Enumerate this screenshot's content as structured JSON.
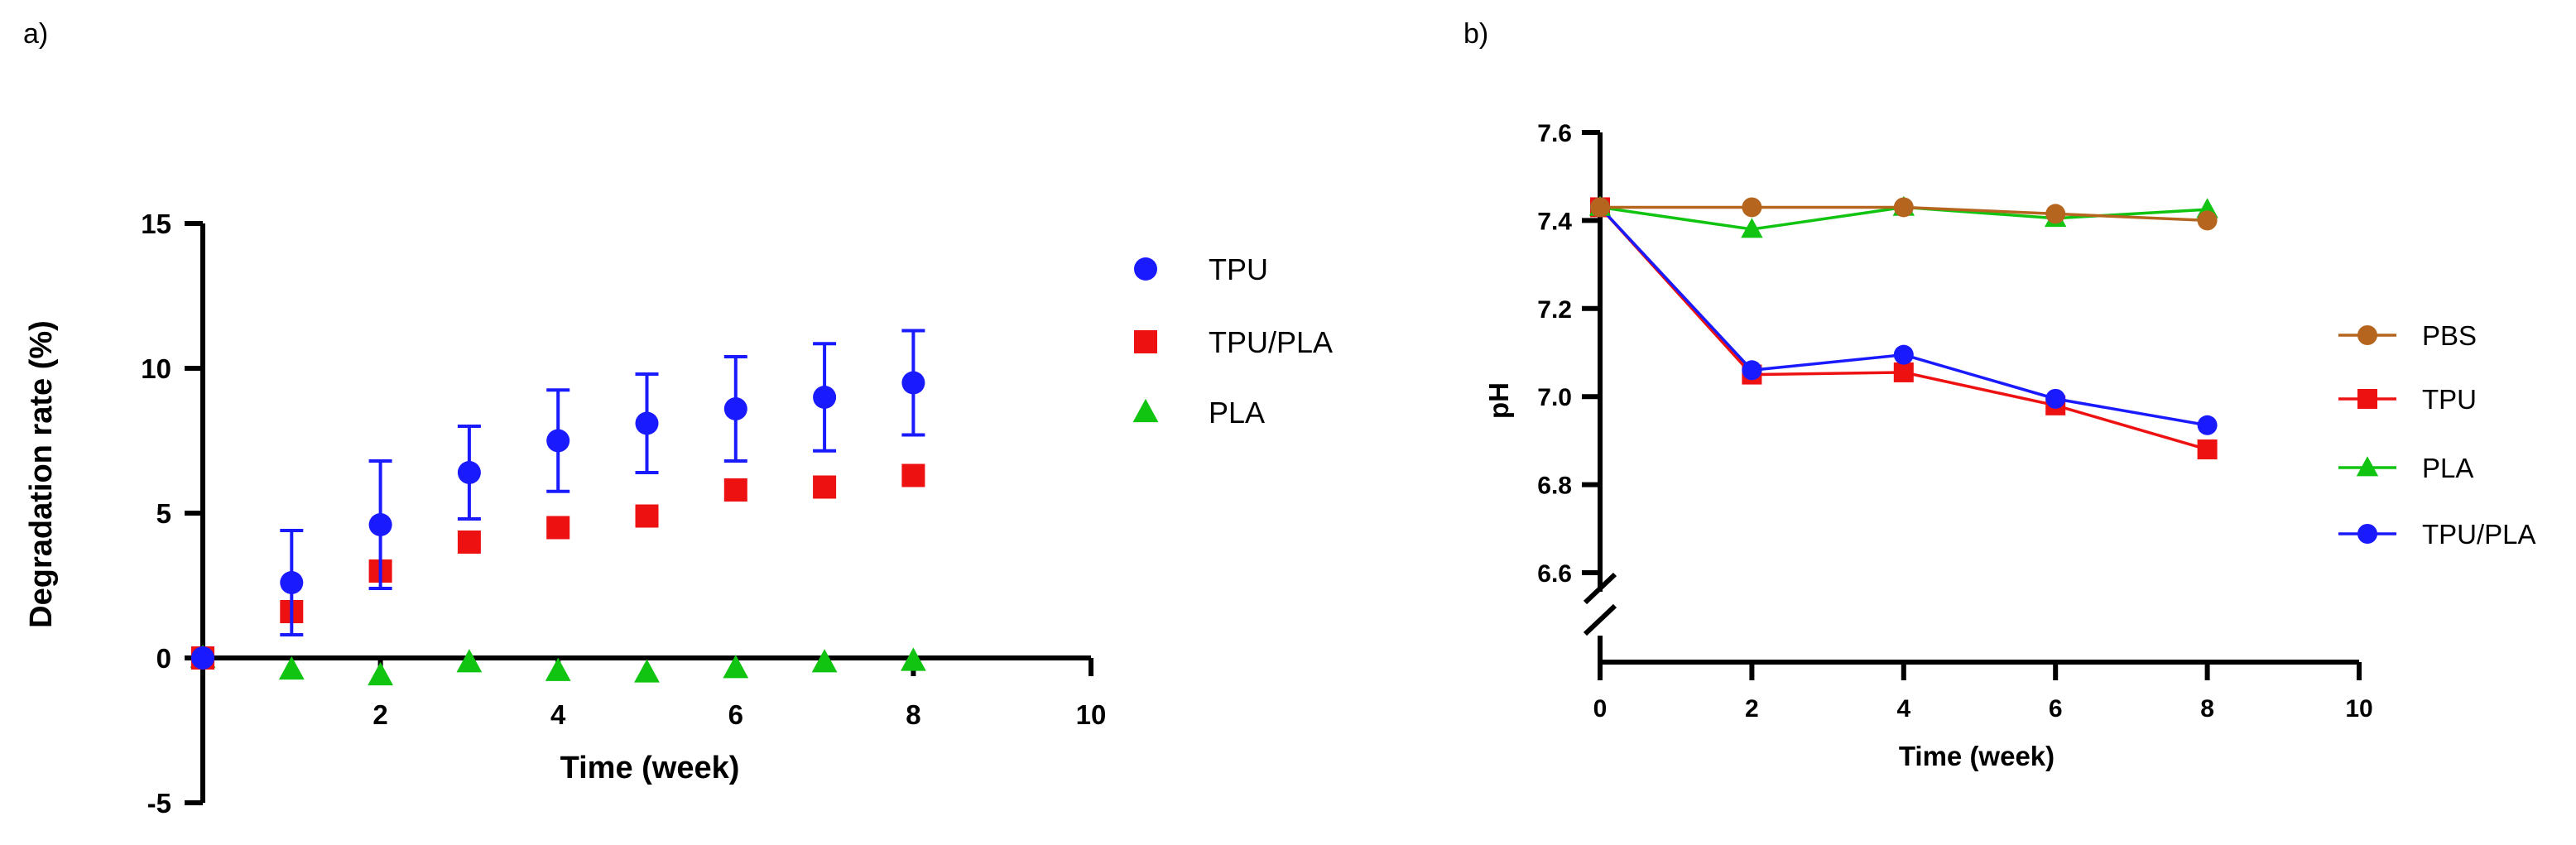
{
  "chart_data": [
    {
      "panel": "a)",
      "type": "scatter",
      "title": "",
      "xlabel": "Time (week)",
      "ylabel": "Degradation rate (%)",
      "xlim": [
        0,
        10
      ],
      "ylim": [
        -5,
        15
      ],
      "x_ticks": [
        2,
        4,
        6,
        8,
        10
      ],
      "y_ticks": [
        -5,
        0,
        5,
        10,
        15
      ],
      "legend_position": "right",
      "series": [
        {
          "name": "TPU",
          "color": "#1a1aff",
          "marker": "circle",
          "x": [
            0,
            1,
            2,
            3,
            4,
            5,
            6,
            7,
            8
          ],
          "y": [
            0,
            2.6,
            4.6,
            6.4,
            7.5,
            8.1,
            8.6,
            9.0,
            9.5
          ],
          "err": [
            0,
            1.8,
            2.2,
            1.6,
            1.75,
            1.7,
            1.8,
            1.85,
            1.8
          ]
        },
        {
          "name": "TPU/PLA",
          "color": "#ee1111",
          "marker": "square",
          "x": [
            0,
            1,
            2,
            3,
            4,
            5,
            6,
            7,
            8
          ],
          "y": [
            0,
            1.6,
            3.0,
            4.0,
            4.5,
            4.9,
            5.8,
            5.9,
            6.3
          ]
        },
        {
          "name": "PLA",
          "color": "#11c411",
          "marker": "triangle",
          "x": [
            0,
            1,
            2,
            3,
            4,
            5,
            6,
            7,
            8
          ],
          "y": [
            0,
            -0.4,
            -0.6,
            -0.15,
            -0.45,
            -0.5,
            -0.35,
            -0.15,
            -0.1
          ]
        }
      ]
    },
    {
      "panel": "b)",
      "type": "line",
      "title": "",
      "xlabel": "Time (week)",
      "ylabel": "pH",
      "xlim": [
        0,
        10
      ],
      "ylim": [
        6.6,
        7.6
      ],
      "axis_break": true,
      "x_ticks": [
        0,
        2,
        4,
        6,
        8,
        10
      ],
      "y_ticks": [
        6.6,
        6.8,
        7.0,
        7.2,
        7.4,
        7.6
      ],
      "legend_position": "right",
      "series": [
        {
          "name": "PBS",
          "color": "#b5651d",
          "marker": "circle",
          "x": [
            0,
            2,
            4,
            6,
            8
          ],
          "y": [
            7.43,
            7.43,
            7.43,
            7.415,
            7.4
          ]
        },
        {
          "name": "TPU",
          "color": "#ee1111",
          "marker": "square",
          "x": [
            0,
            2,
            4,
            6,
            8
          ],
          "y": [
            7.43,
            7.05,
            7.055,
            6.98,
            6.88
          ]
        },
        {
          "name": "PLA",
          "color": "#11c411",
          "marker": "triangle",
          "x": [
            0,
            2,
            4,
            6,
            8
          ],
          "y": [
            7.43,
            7.38,
            7.43,
            7.405,
            7.425
          ]
        },
        {
          "name": "TPU/PLA",
          "color": "#1a1aff",
          "marker": "circle",
          "x": [
            0,
            2,
            4,
            6,
            8
          ],
          "y": [
            7.43,
            7.06,
            7.095,
            6.995,
            6.935
          ]
        }
      ]
    }
  ]
}
